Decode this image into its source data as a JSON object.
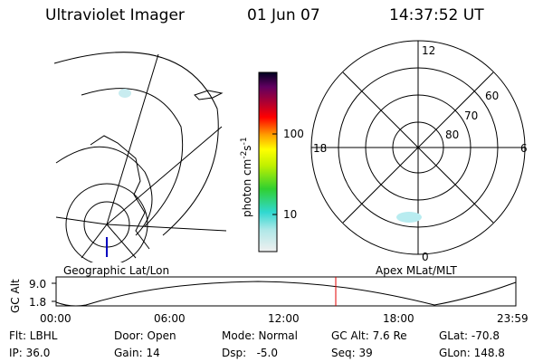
{
  "header": {
    "instrument": "Ultraviolet Imager",
    "date": "01 Jun 07",
    "time": "14:37:52 UT"
  },
  "colorbar": {
    "label_parts": [
      "photon cm",
      "-2",
      "s",
      "-1"
    ],
    "ticks": [
      "100",
      "10"
    ]
  },
  "polar": {
    "mlt_labels": [
      "12",
      "18",
      "6",
      "0"
    ],
    "lat_labels": [
      "60",
      "70",
      "80"
    ]
  },
  "panel_labels": [
    "Geographic Lat/Lon",
    "Apex MLat/MLT"
  ],
  "altitude_plot": {
    "axis_label": "GC Alt",
    "y_labels": [
      "9.0",
      "1.8"
    ],
    "time_labels": [
      "00:00",
      "06:00",
      "12:00",
      "18:00",
      "23:59"
    ]
  },
  "footer": {
    "rows": [
      [
        "Flt: LBHL",
        "Door: Open",
        "Mode: Normal",
        "GC Alt: 7.6 Re",
        "GLat: -70.8"
      ],
      [
        "IP: 36.0",
        "Gain: 14",
        "Dsp:   -5.0",
        "Seq: 39",
        "GLon: 148.8"
      ]
    ]
  }
}
